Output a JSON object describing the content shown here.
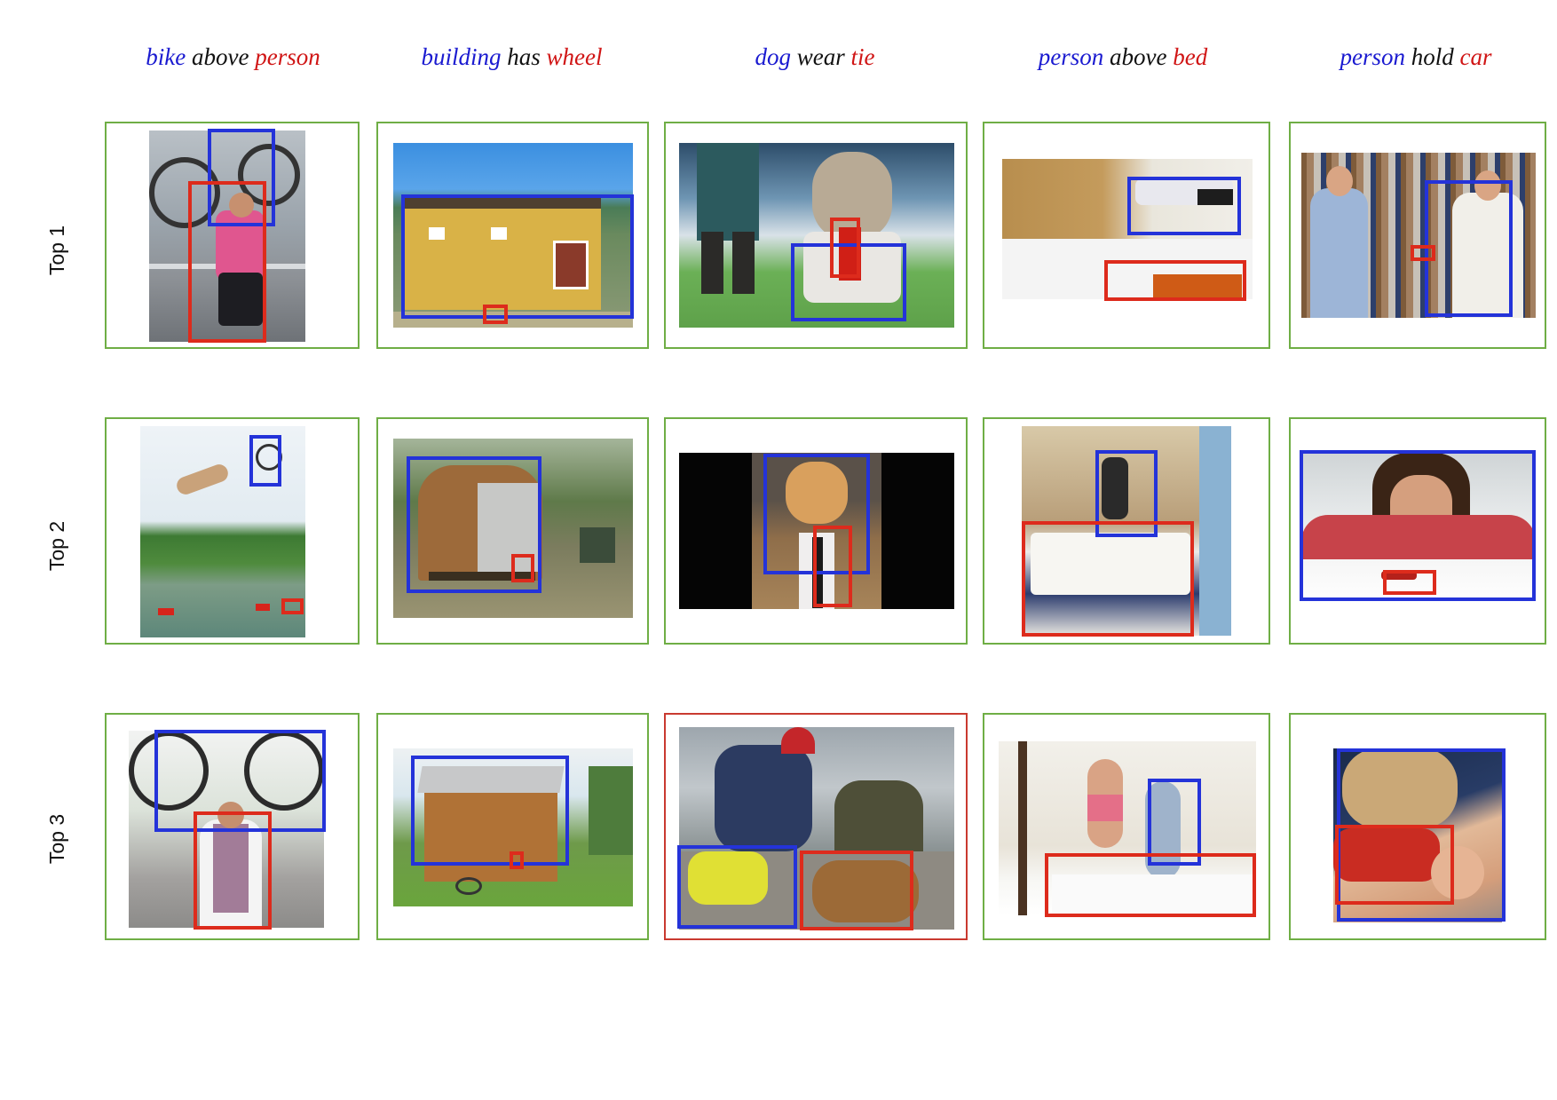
{
  "colors": {
    "subject": "#1a1ad0",
    "predicate": "#111111",
    "object": "#d01515",
    "correct_border": "#6fae45",
    "incorrect_border": "#c93a30",
    "subject_box": "#2433d9",
    "object_box": "#dd2b1c"
  },
  "queries": [
    {
      "subject": "bike",
      "predicate": "above",
      "object": "person"
    },
    {
      "subject": "building",
      "predicate": "has",
      "object": "wheel"
    },
    {
      "subject": "dog",
      "predicate": "wear",
      "object": "tie"
    },
    {
      "subject": "person",
      "predicate": "above",
      "object": "bed"
    },
    {
      "subject": "person",
      "predicate": "hold",
      "object": "car"
    }
  ],
  "rows": [
    "Top 1",
    "Top 2",
    "Top 3"
  ],
  "results": [
    [
      {
        "scene": "woman holding bike above head",
        "correct": true
      },
      {
        "scene": "tiny house on trailer",
        "correct": true
      },
      {
        "scene": "dog wearing tie at show",
        "correct": true
      },
      {
        "scene": "person floating above bed",
        "correct": true
      },
      {
        "scene": "two men in toy car store",
        "correct": true
      }
    ],
    [
      {
        "scene": "cyclist jumping over lake",
        "correct": true
      },
      {
        "scene": "wooden caravan trailer",
        "correct": true
      },
      {
        "scene": "shiba dog in suit and tie",
        "correct": true
      },
      {
        "scene": "woman jumping above bed",
        "correct": true
      },
      {
        "scene": "young man with toy car",
        "correct": true
      }
    ],
    [
      {
        "scene": "cyclist holding bike overhead",
        "correct": true
      },
      {
        "scene": "tiny cabin on wheels",
        "correct": true
      },
      {
        "scene": "men with dogs at table",
        "correct": false
      },
      {
        "scene": "two people jumping on bed",
        "correct": true
      },
      {
        "scene": "child sleeping on toy car",
        "correct": true
      }
    ]
  ]
}
